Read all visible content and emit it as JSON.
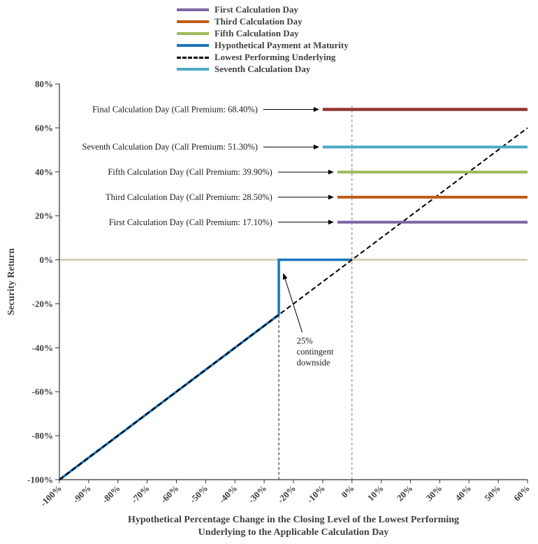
{
  "legend": {
    "items": [
      {
        "label": "First Calculation Day",
        "color": "#8064A2",
        "dash": false
      },
      {
        "label": "Third Calculation Day",
        "color": "#C05C17",
        "dash": false
      },
      {
        "label": "Fifth Calculation Day",
        "color": "#9BBB59",
        "dash": false
      },
      {
        "label": "Hypothetical Payment at Maturity",
        "color": "#1B75BC",
        "dash": false
      },
      {
        "label": "Lowest Performing Underlying",
        "color": "#000000",
        "dash": true
      },
      {
        "label": "Seventh Calculation Day",
        "color": "#4BACC6",
        "dash": false
      }
    ]
  },
  "chart_data": {
    "type": "line",
    "title": "",
    "xlabel_line1": "Hypothetical Percentage Change in the Closing Level of the Lowest Performing",
    "xlabel_line2": "Underlying to the Applicable Calculation Day",
    "ylabel": "Security Return",
    "xlim": [
      -100,
      60
    ],
    "ylim": [
      -100,
      80
    ],
    "grid": false,
    "legend_position": "top-center",
    "x_ticks": [
      -100,
      -90,
      -80,
      -70,
      -60,
      -50,
      -40,
      -30,
      -20,
      -10,
      0,
      10,
      20,
      30,
      40,
      50,
      60
    ],
    "x_tick_labels": [
      "-100%",
      "-90%",
      "-80%",
      "-70%",
      "-60%",
      "-50%",
      "-40%",
      "-30%",
      "-20%",
      "-10%",
      "0%",
      "10%",
      "20%",
      "30%",
      "40%",
      "50%",
      "60%"
    ],
    "y_ticks": [
      80,
      60,
      40,
      20,
      0,
      -20,
      -40,
      -60,
      -80,
      -100
    ],
    "y_tick_labels": [
      "80%",
      "60%",
      "40%",
      "20%",
      "0%",
      "-20%",
      "-40%",
      "-60%",
      "-80%",
      "-100%"
    ],
    "zero_line_color": "#D6D1B7",
    "series": [
      {
        "name": "Hypothetical Payment at Maturity",
        "color": "#1B75BC",
        "width": 3.5,
        "points": [
          [
            -100,
            -100
          ],
          [
            -25,
            -25
          ],
          [
            -25,
            0
          ],
          [
            0,
            0
          ]
        ]
      },
      {
        "name": "Lowest Performing Underlying",
        "color": "#000000",
        "width": 2,
        "dash": "7,4",
        "points": [
          [
            -100,
            -100
          ],
          [
            60,
            60
          ]
        ]
      },
      {
        "name": "First Calculation Day",
        "color": "#8064A2",
        "width": 4,
        "points": [
          [
            -5,
            17.1
          ],
          [
            60,
            17.1
          ]
        ]
      },
      {
        "name": "Third Calculation Day",
        "color": "#C05C17",
        "width": 4,
        "points": [
          [
            -5,
            28.5
          ],
          [
            60,
            28.5
          ]
        ]
      },
      {
        "name": "Fifth Calculation Day",
        "color": "#9BBB59",
        "width": 4,
        "points": [
          [
            -5,
            39.9
          ],
          [
            60,
            39.9
          ]
        ]
      },
      {
        "name": "Seventh Calculation Day",
        "color": "#4BACC6",
        "width": 4,
        "points": [
          [
            -10,
            51.3
          ],
          [
            60,
            51.3
          ]
        ]
      },
      {
        "name": "Final Calculation Day",
        "color": "#943634",
        "width": 4.5,
        "points": [
          [
            -10,
            68.4
          ],
          [
            60,
            68.4
          ]
        ]
      }
    ],
    "callout_labels": [
      {
        "label": "Final Calculation Day (Call Premium: 68.40%)",
        "y": 68.4,
        "line_start_x": -10
      },
      {
        "label": "Seventh Calculation Day (Call Premium: 51.30%)",
        "y": 51.3,
        "line_start_x": -10
      },
      {
        "label": "Fifth Calculation Day (Call Premium: 39.90%)",
        "y": 39.9,
        "line_start_x": -5
      },
      {
        "label": "Third Calculation Day (Call Premium: 28.50%)",
        "y": 28.5,
        "line_start_x": -5
      },
      {
        "label": "First Calculation Day (Call Premium: 17.10%)",
        "y": 17.1,
        "line_start_x": -5
      }
    ],
    "vlines": [
      {
        "x": -25,
        "y_from": -100,
        "y_to": 0,
        "color": "#1a1a1a"
      },
      {
        "x": 0,
        "y_from": -100,
        "y_to": 70,
        "color": "#7F7F7F"
      }
    ],
    "note": {
      "lines": [
        "25%",
        "contingent",
        "downside"
      ],
      "target_x": -23.5,
      "target_y": -6,
      "tail_x": -17,
      "tail_y": -33
    }
  }
}
